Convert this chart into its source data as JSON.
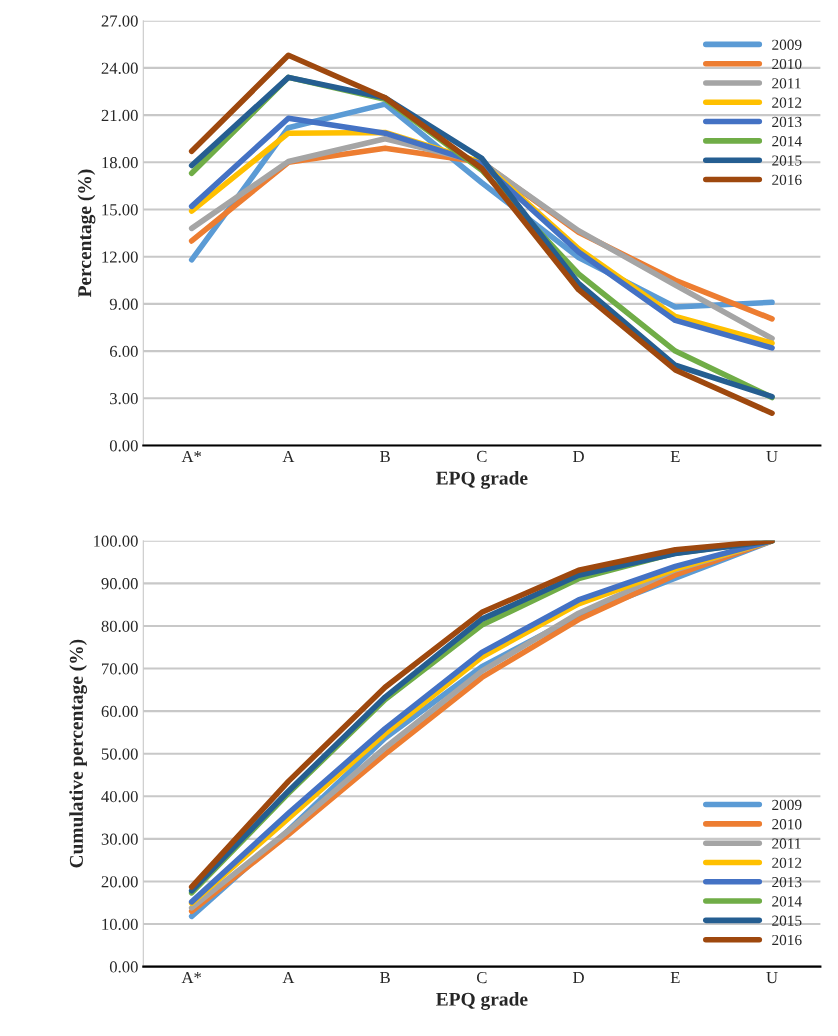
{
  "chart_data": [
    {
      "type": "line",
      "xlabel": "EPQ grade",
      "ylabel": "Percentage (%)",
      "categories": [
        "A*",
        "A",
        "B",
        "C",
        "D",
        "E",
        "U"
      ],
      "ylim": [
        0,
        27
      ],
      "yticks": [
        {
          "value": 0,
          "label": "0.00"
        },
        {
          "value": 3,
          "label": "3.00"
        },
        {
          "value": 6,
          "label": "6.00"
        },
        {
          "value": 9,
          "label": "9.00"
        },
        {
          "value": 12,
          "label": "12.00"
        },
        {
          "value": 15,
          "label": "15.00"
        },
        {
          "value": 18,
          "label": "18.00"
        },
        {
          "value": 21,
          "label": "21.00"
        },
        {
          "value": 24,
          "label": "24.00"
        },
        {
          "value": 27,
          "label": "27.00"
        }
      ],
      "grid": "y",
      "legend": "top right",
      "marker": "none",
      "line_style": "solid",
      "series": [
        {
          "name": "2009",
          "color": "#5b9bd5",
          "values": [
            11.8,
            20.2,
            21.7,
            16.7,
            11.95,
            8.8,
            9.1
          ]
        },
        {
          "name": "2010",
          "color": "#ed7d31",
          "values": [
            13.0,
            18.0,
            18.9,
            18.0,
            13.55,
            10.5,
            8.05
          ]
        },
        {
          "name": "2011",
          "color": "#a5a5a5",
          "values": [
            13.8,
            18.05,
            19.5,
            18.0,
            13.65,
            10.2,
            6.8
          ]
        },
        {
          "name": "2012",
          "color": "#ffc000",
          "values": [
            14.9,
            19.85,
            19.9,
            18.0,
            12.5,
            8.2,
            6.5
          ]
        },
        {
          "name": "2013",
          "color": "#4472c4",
          "values": [
            15.2,
            20.8,
            19.85,
            17.9,
            12.3,
            7.95,
            6.2
          ]
        },
        {
          "name": "2014",
          "color": "#70ad47",
          "values": [
            17.3,
            23.4,
            22.0,
            17.5,
            10.9,
            6.0,
            3.05
          ]
        },
        {
          "name": "2015",
          "color": "#255e91",
          "values": [
            17.8,
            23.4,
            22.1,
            18.25,
            10.3,
            5.1,
            3.1
          ]
        },
        {
          "name": "2016",
          "color": "#9e480e",
          "values": [
            18.7,
            24.8,
            22.1,
            17.6,
            9.9,
            4.8,
            2.05
          ]
        }
      ]
    },
    {
      "type": "line",
      "xlabel": "EPQ grade",
      "ylabel": "Cumulative percentage (%)",
      "categories": [
        "A*",
        "A",
        "B",
        "C",
        "D",
        "E",
        "U"
      ],
      "ylim": [
        0,
        100
      ],
      "yticks": [
        {
          "value": 0,
          "label": "0.00"
        },
        {
          "value": 10,
          "label": "10.00"
        },
        {
          "value": 20,
          "label": "20.00"
        },
        {
          "value": 30,
          "label": "30.00"
        },
        {
          "value": 40,
          "label": "40.00"
        },
        {
          "value": 50,
          "label": "50.00"
        },
        {
          "value": 60,
          "label": "60.00"
        },
        {
          "value": 70,
          "label": "70.00"
        },
        {
          "value": 80,
          "label": "80.00"
        },
        {
          "value": 90,
          "label": "90.00"
        },
        {
          "value": 100,
          "label": "100.00"
        }
      ],
      "grid": "y",
      "legend": "lower right",
      "marker": "none",
      "line_style": "solid",
      "series": [
        {
          "name": "2009",
          "color": "#5b9bd5",
          "values": [
            11.8,
            32.0,
            53.7,
            70.4,
            82.4,
            91.2,
            100
          ]
        },
        {
          "name": "2010",
          "color": "#ed7d31",
          "values": [
            13.0,
            31.0,
            49.9,
            67.9,
            81.5,
            92.0,
            100
          ]
        },
        {
          "name": "2011",
          "color": "#a5a5a5",
          "values": [
            13.8,
            31.9,
            51.4,
            69.4,
            83.0,
            93.2,
            100
          ]
        },
        {
          "name": "2012",
          "color": "#ffc000",
          "values": [
            14.9,
            34.8,
            54.7,
            72.7,
            85.2,
            93.4,
            100
          ]
        },
        {
          "name": "2013",
          "color": "#4472c4",
          "values": [
            15.2,
            36.0,
            55.9,
            73.8,
            86.1,
            94.0,
            100
          ]
        },
        {
          "name": "2014",
          "color": "#70ad47",
          "values": [
            17.3,
            40.7,
            62.7,
            80.2,
            91.1,
            97.1,
            100
          ]
        },
        {
          "name": "2015",
          "color": "#255e91",
          "values": [
            17.8,
            41.2,
            63.3,
            81.6,
            91.9,
            97.0,
            100
          ]
        },
        {
          "name": "2016",
          "color": "#9e480e",
          "values": [
            18.7,
            43.5,
            65.6,
            83.2,
            93.1,
            97.9,
            100
          ]
        }
      ]
    }
  ]
}
